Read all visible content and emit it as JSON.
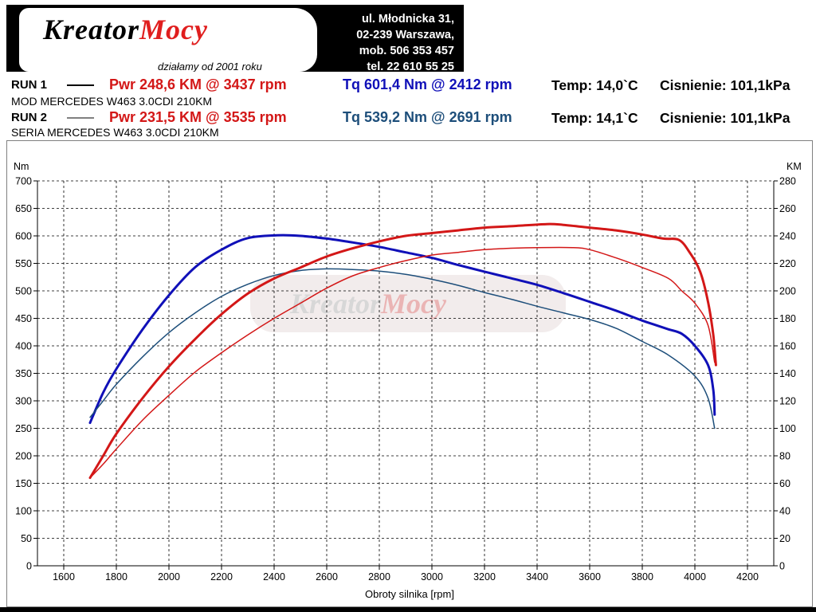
{
  "header": {
    "logo_text_black": "KreatorMocy",
    "logo_prefix": "Kreator",
    "logo_suffix": "Mocy",
    "logo_tagline": "działamy od 2001 roku",
    "address": [
      "ul. Młodnicka 31,",
      "02-239  Warszawa,",
      "mob.  506 353 457",
      "tel.  22 610 55 25"
    ]
  },
  "runs": [
    {
      "label": "RUN 1",
      "desc": "MOD MERCEDES W463 3.0CDI 210KM",
      "pwr": "Pwr  248,6 KM @ 3437 rpm",
      "tq": "Tq 601,4 Nm @ 2412 rpm",
      "temp": "Temp: 14,0`C",
      "pressure": "Cisnienie: 101,1kPa",
      "line_style": "thick"
    },
    {
      "label": "RUN 2",
      "desc": "SERIA MERCEDES W463 3.0CDI 210KM",
      "pwr": "Pwr  231,5 KM @ 3535 rpm",
      "tq": "Tq 539,2 Nm @ 2691 rpm",
      "temp": "Temp: 14,1`C",
      "pressure": "Cisnienie: 101,1kPa",
      "line_style": "thin"
    }
  ],
  "colors": {
    "power": "#d31717",
    "torque_run1": "#1010b8",
    "torque_run2": "#1d4e7a",
    "grid": "#000000"
  },
  "chart_data": {
    "type": "line",
    "xlabel": "Obroty silnika [rpm]",
    "ylabel_left": "Nm",
    "ylabel_right": "KM",
    "xlim": [
      1500,
      4300
    ],
    "ylim_left": [
      0,
      700
    ],
    "ylim_right": [
      0,
      280
    ],
    "x_ticks": [
      1600,
      1800,
      2000,
      2200,
      2400,
      2600,
      2800,
      3000,
      3200,
      3400,
      3600,
      3800,
      4000,
      4200
    ],
    "y_left_ticks": [
      0,
      50,
      100,
      150,
      200,
      250,
      300,
      350,
      400,
      450,
      500,
      550,
      600,
      650,
      700
    ],
    "y_right_ticks": [
      0,
      20,
      40,
      60,
      80,
      100,
      120,
      140,
      160,
      180,
      200,
      220,
      240,
      260,
      280
    ],
    "grid": true,
    "series": [
      {
        "name": "Tq RUN 1",
        "axis": "left",
        "color": "#1010b8",
        "width": 3,
        "x": [
          1700,
          1750,
          1800,
          1900,
          2000,
          2100,
          2200,
          2300,
          2412,
          2500,
          2600,
          2700,
          2800,
          2900,
          3000,
          3100,
          3200,
          3300,
          3400,
          3500,
          3600,
          3700,
          3800,
          3850,
          3900,
          3950,
          4000,
          4050,
          4070,
          4075
        ],
        "y": [
          260,
          315,
          358,
          430,
          492,
          543,
          575,
          596,
          601,
          600,
          595,
          588,
          580,
          570,
          560,
          547,
          535,
          523,
          511,
          496,
          480,
          464,
          446,
          438,
          430,
          422,
          400,
          365,
          320,
          275
        ]
      },
      {
        "name": "Tq RUN 2",
        "axis": "left",
        "color": "#1d4e7a",
        "width": 1.5,
        "x": [
          1700,
          1750,
          1800,
          1900,
          2000,
          2100,
          2200,
          2300,
          2400,
          2500,
          2600,
          2691,
          2800,
          2900,
          3000,
          3100,
          3200,
          3300,
          3400,
          3500,
          3600,
          3700,
          3800,
          3900,
          4000,
          4050,
          4075
        ],
        "y": [
          270,
          300,
          330,
          380,
          424,
          460,
          490,
          512,
          528,
          537,
          540,
          539,
          536,
          530,
          521,
          510,
          497,
          485,
          472,
          460,
          448,
          432,
          408,
          383,
          345,
          305,
          250
        ]
      },
      {
        "name": "Pwr RUN 1",
        "axis": "right",
        "color": "#d31717",
        "width": 3,
        "x": [
          1700,
          1750,
          1800,
          1900,
          2000,
          2100,
          2200,
          2300,
          2400,
          2500,
          2600,
          2700,
          2800,
          2900,
          3000,
          3100,
          3200,
          3300,
          3437,
          3500,
          3600,
          3700,
          3800,
          3880,
          3940,
          3980,
          4020,
          4050,
          4070,
          4080
        ],
        "y": [
          64,
          80,
          96,
          122,
          145,
          165,
          183,
          198,
          209,
          217,
          225,
          231,
          236,
          240,
          242,
          244,
          246,
          247,
          248.6,
          248,
          246,
          244,
          241,
          238,
          237,
          228,
          214,
          192,
          168,
          146
        ]
      },
      {
        "name": "Pwr RUN 2",
        "axis": "right",
        "color": "#d31717",
        "width": 1.5,
        "x": [
          1700,
          1750,
          1800,
          1900,
          2000,
          2100,
          2200,
          2300,
          2400,
          2500,
          2600,
          2700,
          2800,
          2900,
          3000,
          3100,
          3200,
          3300,
          3400,
          3535,
          3600,
          3700,
          3800,
          3900,
          3950,
          4000,
          4050,
          4075
        ],
        "y": [
          64,
          74,
          85,
          106,
          124,
          141,
          155,
          168,
          180,
          191,
          202,
          211,
          217,
          222,
          226,
          228,
          230,
          231,
          231.5,
          231.5,
          230,
          224,
          217,
          209,
          200,
          191,
          175,
          148
        ]
      }
    ]
  }
}
